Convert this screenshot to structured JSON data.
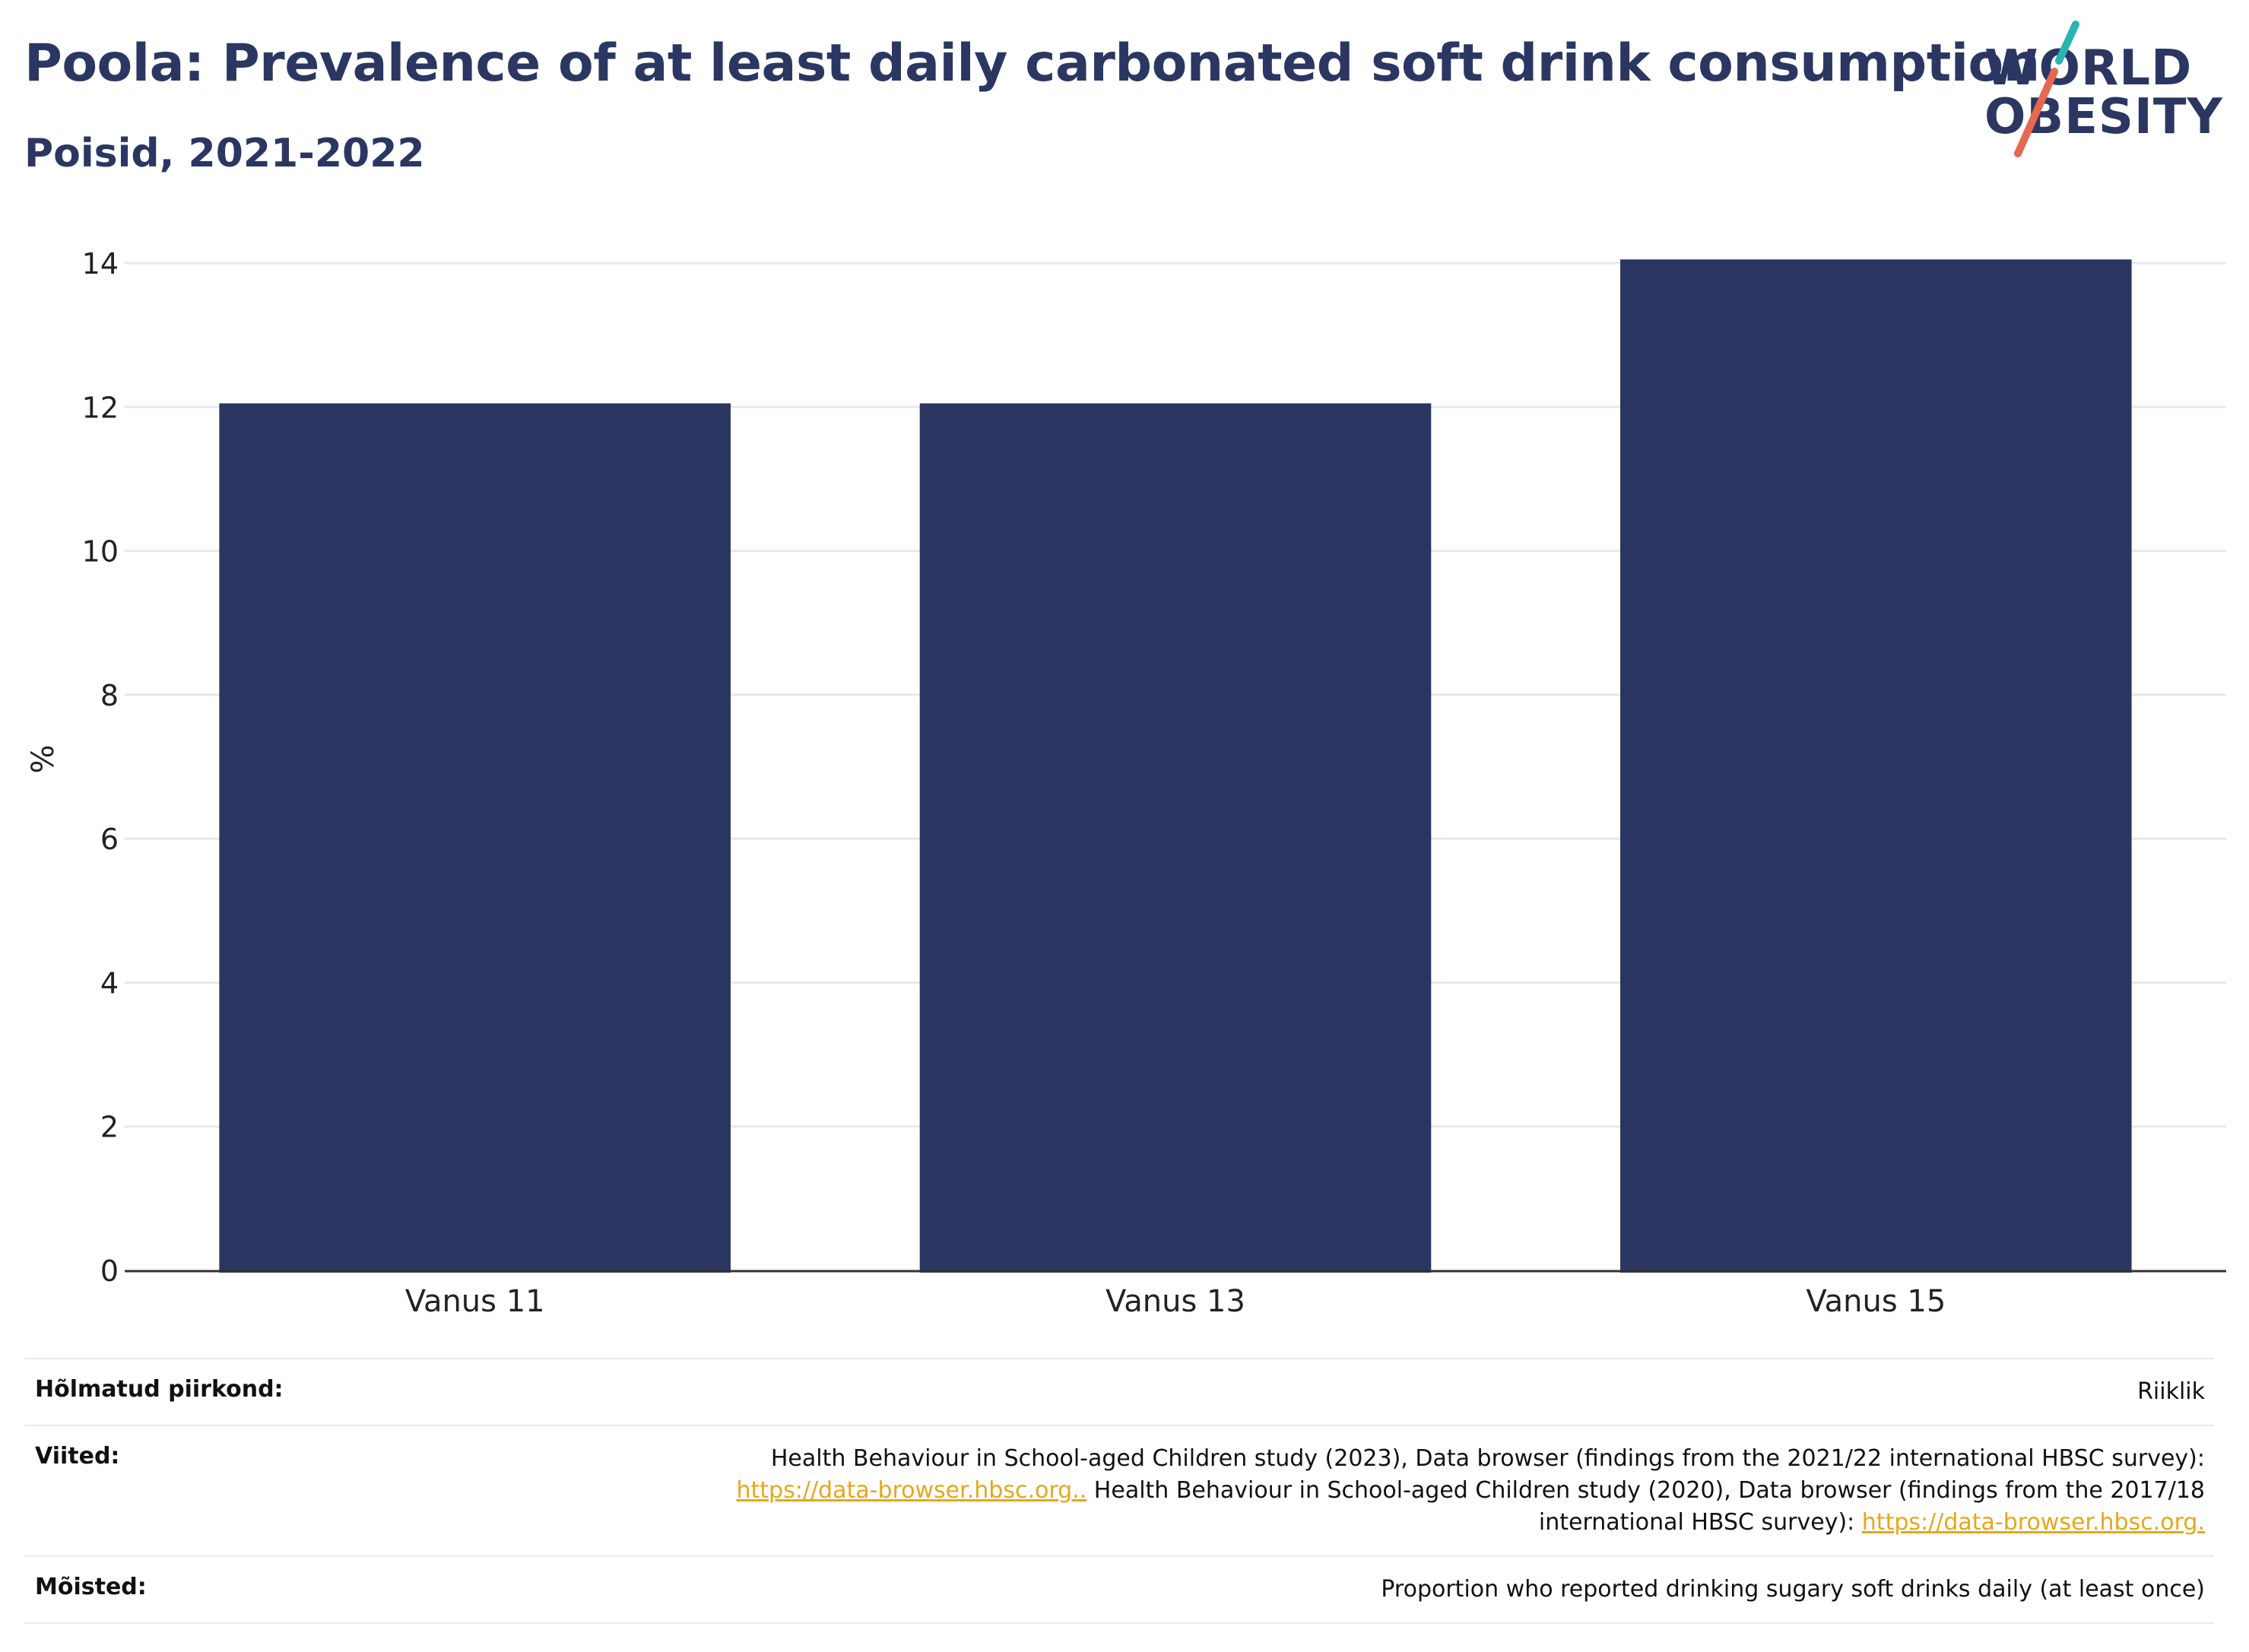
{
  "header": {
    "title": "Poola: Prevalence of at least daily carbonated soft drink consumption",
    "subtitle": "Poisid, 2021-2022"
  },
  "logo": {
    "line1": "WORLD",
    "line2": "OBESITY",
    "text_color": "#2b3762",
    "slash_colors": [
      "#2bb5b0",
      "#e5684f"
    ]
  },
  "chart_data": {
    "type": "bar",
    "categories": [
      "Vanus 11",
      "Vanus 13",
      "Vanus 15"
    ],
    "values": [
      12.05,
      12.05,
      14.05
    ],
    "ylabel": "%",
    "xlabel": "",
    "ylim": [
      0,
      14
    ],
    "yticks": [
      0,
      2,
      4,
      6,
      8,
      10,
      12,
      14
    ],
    "grid": true,
    "bar_color": "#2a3661"
  },
  "footer": {
    "region_label": "Hõlmatud piirkond:",
    "region_value": "Riiklik",
    "refs_label": "Viited:",
    "refs_text_1": "Health Behaviour in School-aged Children study (2023), Data browser (findings from the 2021/22 international HBSC survey):",
    "refs_link_1": "https://data-browser.hbsc.org..",
    "refs_text_2": " Health Behaviour in School-aged Children study (2020), Data browser (findings from the 2017/18",
    "refs_text_3": "international HBSC survey): ",
    "refs_link_2": "https://data-browser.hbsc.org.",
    "defs_label": "Mõisted:",
    "defs_value": "Proportion who reported drinking sugary soft drinks daily (at least once)"
  }
}
